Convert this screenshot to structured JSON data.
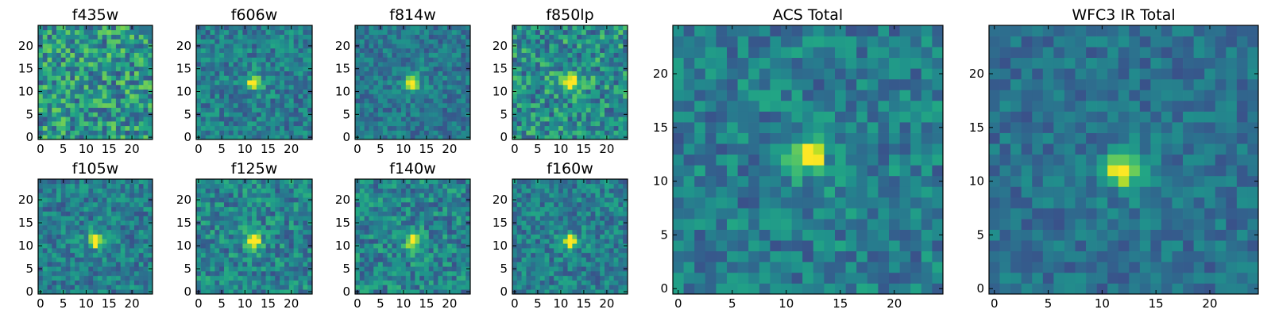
{
  "chart_data": [
    {
      "type": "heatmap",
      "title": "f435w",
      "colormap": "viridis",
      "size": 25,
      "peak": null,
      "noise_level": 0.55,
      "xticks": [
        "0",
        "5",
        "10",
        "15",
        "20"
      ],
      "yticks": [
        "0",
        "5",
        "10",
        "15",
        "20"
      ],
      "xlim": [
        -0.5,
        24.5
      ],
      "ylim": [
        -0.5,
        24.5
      ]
    },
    {
      "type": "heatmap",
      "title": "f606w",
      "colormap": "viridis",
      "size": 25,
      "peak": [
        12,
        12
      ],
      "noise_level": 0.35,
      "xticks": [
        "0",
        "5",
        "10",
        "15",
        "20"
      ],
      "yticks": [
        "0",
        "5",
        "10",
        "15",
        "20"
      ],
      "xlim": [
        -0.5,
        24.5
      ],
      "ylim": [
        -0.5,
        24.5
      ]
    },
    {
      "type": "heatmap",
      "title": "f814w",
      "colormap": "viridis",
      "size": 25,
      "peak": [
        12,
        12
      ],
      "noise_level": 0.3,
      "xticks": [
        "0",
        "5",
        "10",
        "15",
        "20"
      ],
      "yticks": [
        "0",
        "5",
        "10",
        "15",
        "20"
      ],
      "xlim": [
        -0.5,
        24.5
      ],
      "ylim": [
        -0.5,
        24.5
      ]
    },
    {
      "type": "heatmap",
      "title": "f850lp",
      "colormap": "viridis",
      "size": 25,
      "peak": [
        12,
        12
      ],
      "noise_level": 0.5,
      "xticks": [
        "0",
        "5",
        "10",
        "15",
        "20"
      ],
      "yticks": [
        "0",
        "5",
        "10",
        "15",
        "20"
      ],
      "xlim": [
        -0.5,
        24.5
      ],
      "ylim": [
        -0.5,
        24.5
      ]
    },
    {
      "type": "heatmap",
      "title": "ACS Total",
      "colormap": "viridis",
      "size": 25,
      "peak": [
        12,
        12.5
      ],
      "noise_level": 0.35,
      "xticks": [
        "0",
        "5",
        "10",
        "15",
        "20"
      ],
      "yticks": [
        "0",
        "5",
        "10",
        "15",
        "20"
      ],
      "xlim": [
        -0.5,
        24.5
      ],
      "ylim": [
        -0.5,
        24.5
      ]
    },
    {
      "type": "heatmap",
      "title": "f105w",
      "colormap": "viridis",
      "size": 25,
      "peak": [
        12,
        11
      ],
      "noise_level": 0.35,
      "xticks": [
        "0",
        "5",
        "10",
        "15",
        "20"
      ],
      "yticks": [
        "0",
        "5",
        "10",
        "15",
        "20"
      ],
      "xlim": [
        -0.5,
        24.5
      ],
      "ylim": [
        -0.5,
        24.5
      ]
    },
    {
      "type": "heatmap",
      "title": "f125w",
      "colormap": "viridis",
      "size": 25,
      "peak": [
        12,
        11
      ],
      "noise_level": 0.4,
      "xticks": [
        "0",
        "5",
        "10",
        "15",
        "20"
      ],
      "yticks": [
        "0",
        "5",
        "10",
        "15",
        "20"
      ],
      "xlim": [
        -0.5,
        24.5
      ],
      "ylim": [
        -0.5,
        24.5
      ]
    },
    {
      "type": "heatmap",
      "title": "f140w",
      "colormap": "viridis",
      "size": 25,
      "peak": [
        12,
        11
      ],
      "noise_level": 0.4,
      "xticks": [
        "0",
        "5",
        "10",
        "15",
        "20"
      ],
      "yticks": [
        "0",
        "5",
        "10",
        "15",
        "20"
      ],
      "xlim": [
        -0.5,
        24.5
      ],
      "ylim": [
        -0.5,
        24.5
      ]
    },
    {
      "type": "heatmap",
      "title": "f160w",
      "colormap": "viridis",
      "size": 25,
      "peak": [
        12,
        11
      ],
      "noise_level": 0.35,
      "xticks": [
        "0",
        "5",
        "10",
        "15",
        "20"
      ],
      "yticks": [
        "0",
        "5",
        "10",
        "15",
        "20"
      ],
      "xlim": [
        -0.5,
        24.5
      ],
      "ylim": [
        -0.5,
        24.5
      ]
    },
    {
      "type": "heatmap",
      "title": "WFC3 IR Total",
      "colormap": "viridis",
      "size": 25,
      "peak": [
        12,
        11
      ],
      "noise_level": 0.25,
      "xticks": [
        "0",
        "5",
        "10",
        "15",
        "20"
      ],
      "yticks": [
        "0",
        "5",
        "10",
        "15",
        "20"
      ],
      "xlim": [
        -0.5,
        24.5
      ],
      "ylim": [
        -0.5,
        24.5
      ]
    }
  ]
}
